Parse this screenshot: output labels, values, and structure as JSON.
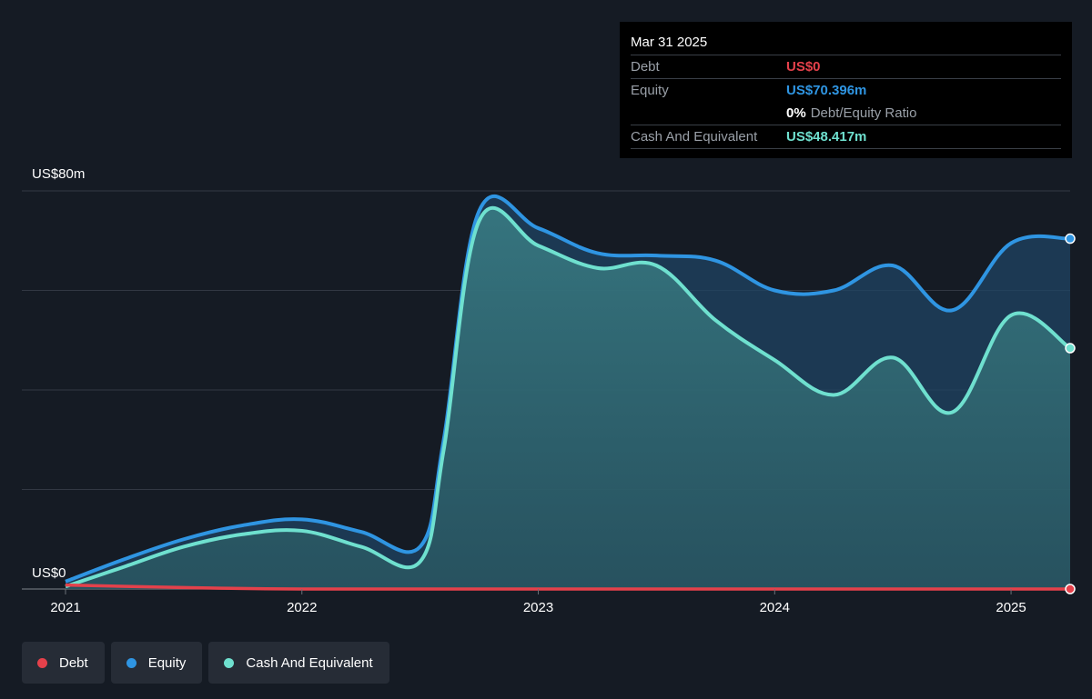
{
  "tooltip": {
    "date": "Mar 31 2025",
    "debt_label": "Debt",
    "debt_value": "US$0",
    "equity_label": "Equity",
    "equity_value": "US$70.396m",
    "ratio_value": "0%",
    "ratio_label": "Debt/Equity Ratio",
    "cash_label": "Cash And Equivalent",
    "cash_value": "US$48.417m"
  },
  "axes": {
    "y_top_label": "US$80m",
    "y_bottom_label": "US$0"
  },
  "legend": [
    {
      "label": "Debt",
      "color": "#e5414b"
    },
    {
      "label": "Equity",
      "color": "#2f95e2"
    },
    {
      "label": "Cash And Equivalent",
      "color": "#6fe0cf"
    }
  ],
  "chart_data": {
    "type": "area",
    "ylim": [
      0,
      80
    ],
    "xlim": [
      2021.0,
      2025.25
    ],
    "x_ticks": [
      2021,
      2022,
      2023,
      2024,
      2025
    ],
    "x_tick_labels": [
      "2021",
      "2022",
      "2023",
      "2024",
      "2025"
    ],
    "grid": true,
    "colors": {
      "debt": "#e5414b",
      "equity": "#2f95e2",
      "cash": "#6fe0cf"
    },
    "series": [
      {
        "name": "Equity",
        "points": [
          [
            2021.0,
            1.5
          ],
          [
            2021.25,
            6.0
          ],
          [
            2021.5,
            10.0
          ],
          [
            2021.75,
            12.8
          ],
          [
            2022.0,
            14.0
          ],
          [
            2022.25,
            11.5
          ],
          [
            2022.5,
            8.5
          ],
          [
            2022.6,
            30.0
          ],
          [
            2022.75,
            76.0
          ],
          [
            2023.0,
            72.5
          ],
          [
            2023.25,
            67.5
          ],
          [
            2023.5,
            67.0
          ],
          [
            2023.75,
            66.0
          ],
          [
            2024.0,
            60.0
          ],
          [
            2024.25,
            60.0
          ],
          [
            2024.5,
            65.0
          ],
          [
            2024.75,
            56.0
          ],
          [
            2025.0,
            69.5
          ],
          [
            2025.25,
            70.4
          ]
        ]
      },
      {
        "name": "Cash And Equivalent",
        "points": [
          [
            2021.0,
            0.5
          ],
          [
            2021.25,
            4.5
          ],
          [
            2021.5,
            8.5
          ],
          [
            2021.75,
            11.0
          ],
          [
            2022.0,
            11.7
          ],
          [
            2022.25,
            8.5
          ],
          [
            2022.5,
            5.5
          ],
          [
            2022.6,
            28.0
          ],
          [
            2022.75,
            74.0
          ],
          [
            2023.0,
            69.0
          ],
          [
            2023.25,
            64.5
          ],
          [
            2023.5,
            65.0
          ],
          [
            2023.75,
            54.0
          ],
          [
            2024.0,
            46.0
          ],
          [
            2024.25,
            39.0
          ],
          [
            2024.5,
            46.5
          ],
          [
            2024.75,
            35.5
          ],
          [
            2025.0,
            55.0
          ],
          [
            2025.25,
            48.4
          ]
        ]
      },
      {
        "name": "Debt",
        "points": [
          [
            2021.0,
            0.8
          ],
          [
            2021.5,
            0.3
          ],
          [
            2022.0,
            0.0
          ],
          [
            2023.0,
            0.0
          ],
          [
            2024.0,
            0.0
          ],
          [
            2025.0,
            0.0
          ],
          [
            2025.25,
            0.0
          ]
        ]
      }
    ]
  }
}
